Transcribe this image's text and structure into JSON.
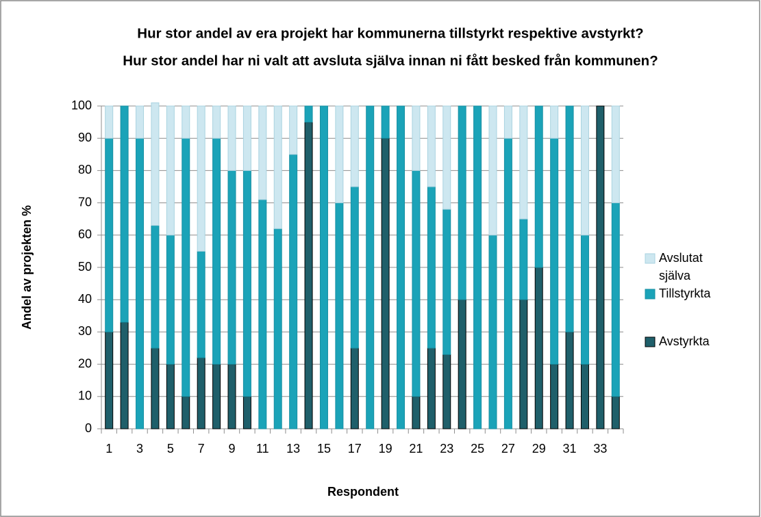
{
  "chart_data": {
    "type": "stacked_bar",
    "title": [
      "Hur stor andel av era projekt har kommunerna tillstyrkt respektive avstyrkt?",
      "Hur stor andel har ni valt att avsluta själva innan ni fått besked från kommunen?"
    ],
    "xlabel": "Respondent",
    "ylabel": "Andel av projekten %",
    "categories": [
      1,
      null,
      3,
      null,
      5,
      null,
      7,
      null,
      9,
      null,
      11,
      null,
      13,
      null,
      15,
      null,
      17,
      null,
      19,
      null,
      21,
      null,
      23,
      null,
      25,
      null,
      27,
      null,
      29,
      null,
      31,
      null,
      33,
      null
    ],
    "series": [
      {
        "name": "Avstyrkta",
        "color": "#1f5f6a",
        "values": [
          30,
          33,
          0,
          25,
          20,
          10,
          22,
          20,
          20,
          10,
          0,
          0,
          0,
          95,
          0,
          0,
          25,
          0,
          90,
          0,
          10,
          25,
          23,
          40,
          0,
          0,
          0,
          40,
          50,
          20,
          30,
          20,
          100,
          10
        ]
      },
      {
        "name": "Tillstyrkta",
        "color": "#1ba3b8",
        "values": [
          60,
          67,
          90,
          38,
          40,
          80,
          33,
          70,
          60,
          70,
          71,
          62,
          85,
          5,
          100,
          70,
          50,
          100,
          10,
          100,
          70,
          50,
          45,
          60,
          100,
          60,
          90,
          25,
          50,
          70,
          70,
          40,
          0,
          60
        ]
      },
      {
        "name": "Avslutat själva",
        "color": "#cde7f0",
        "values": [
          10,
          0,
          10,
          38,
          40,
          10,
          45,
          10,
          20,
          20,
          29,
          38,
          15,
          0,
          0,
          30,
          25,
          0,
          0,
          0,
          20,
          25,
          32,
          0,
          0,
          40,
          10,
          35,
          0,
          10,
          0,
          40,
          0,
          30
        ]
      }
    ],
    "ylim": [
      0,
      100
    ],
    "yticks": [
      0,
      10,
      20,
      30,
      40,
      50,
      60,
      70,
      80,
      90,
      100
    ],
    "grid": true,
    "legend": "right"
  }
}
